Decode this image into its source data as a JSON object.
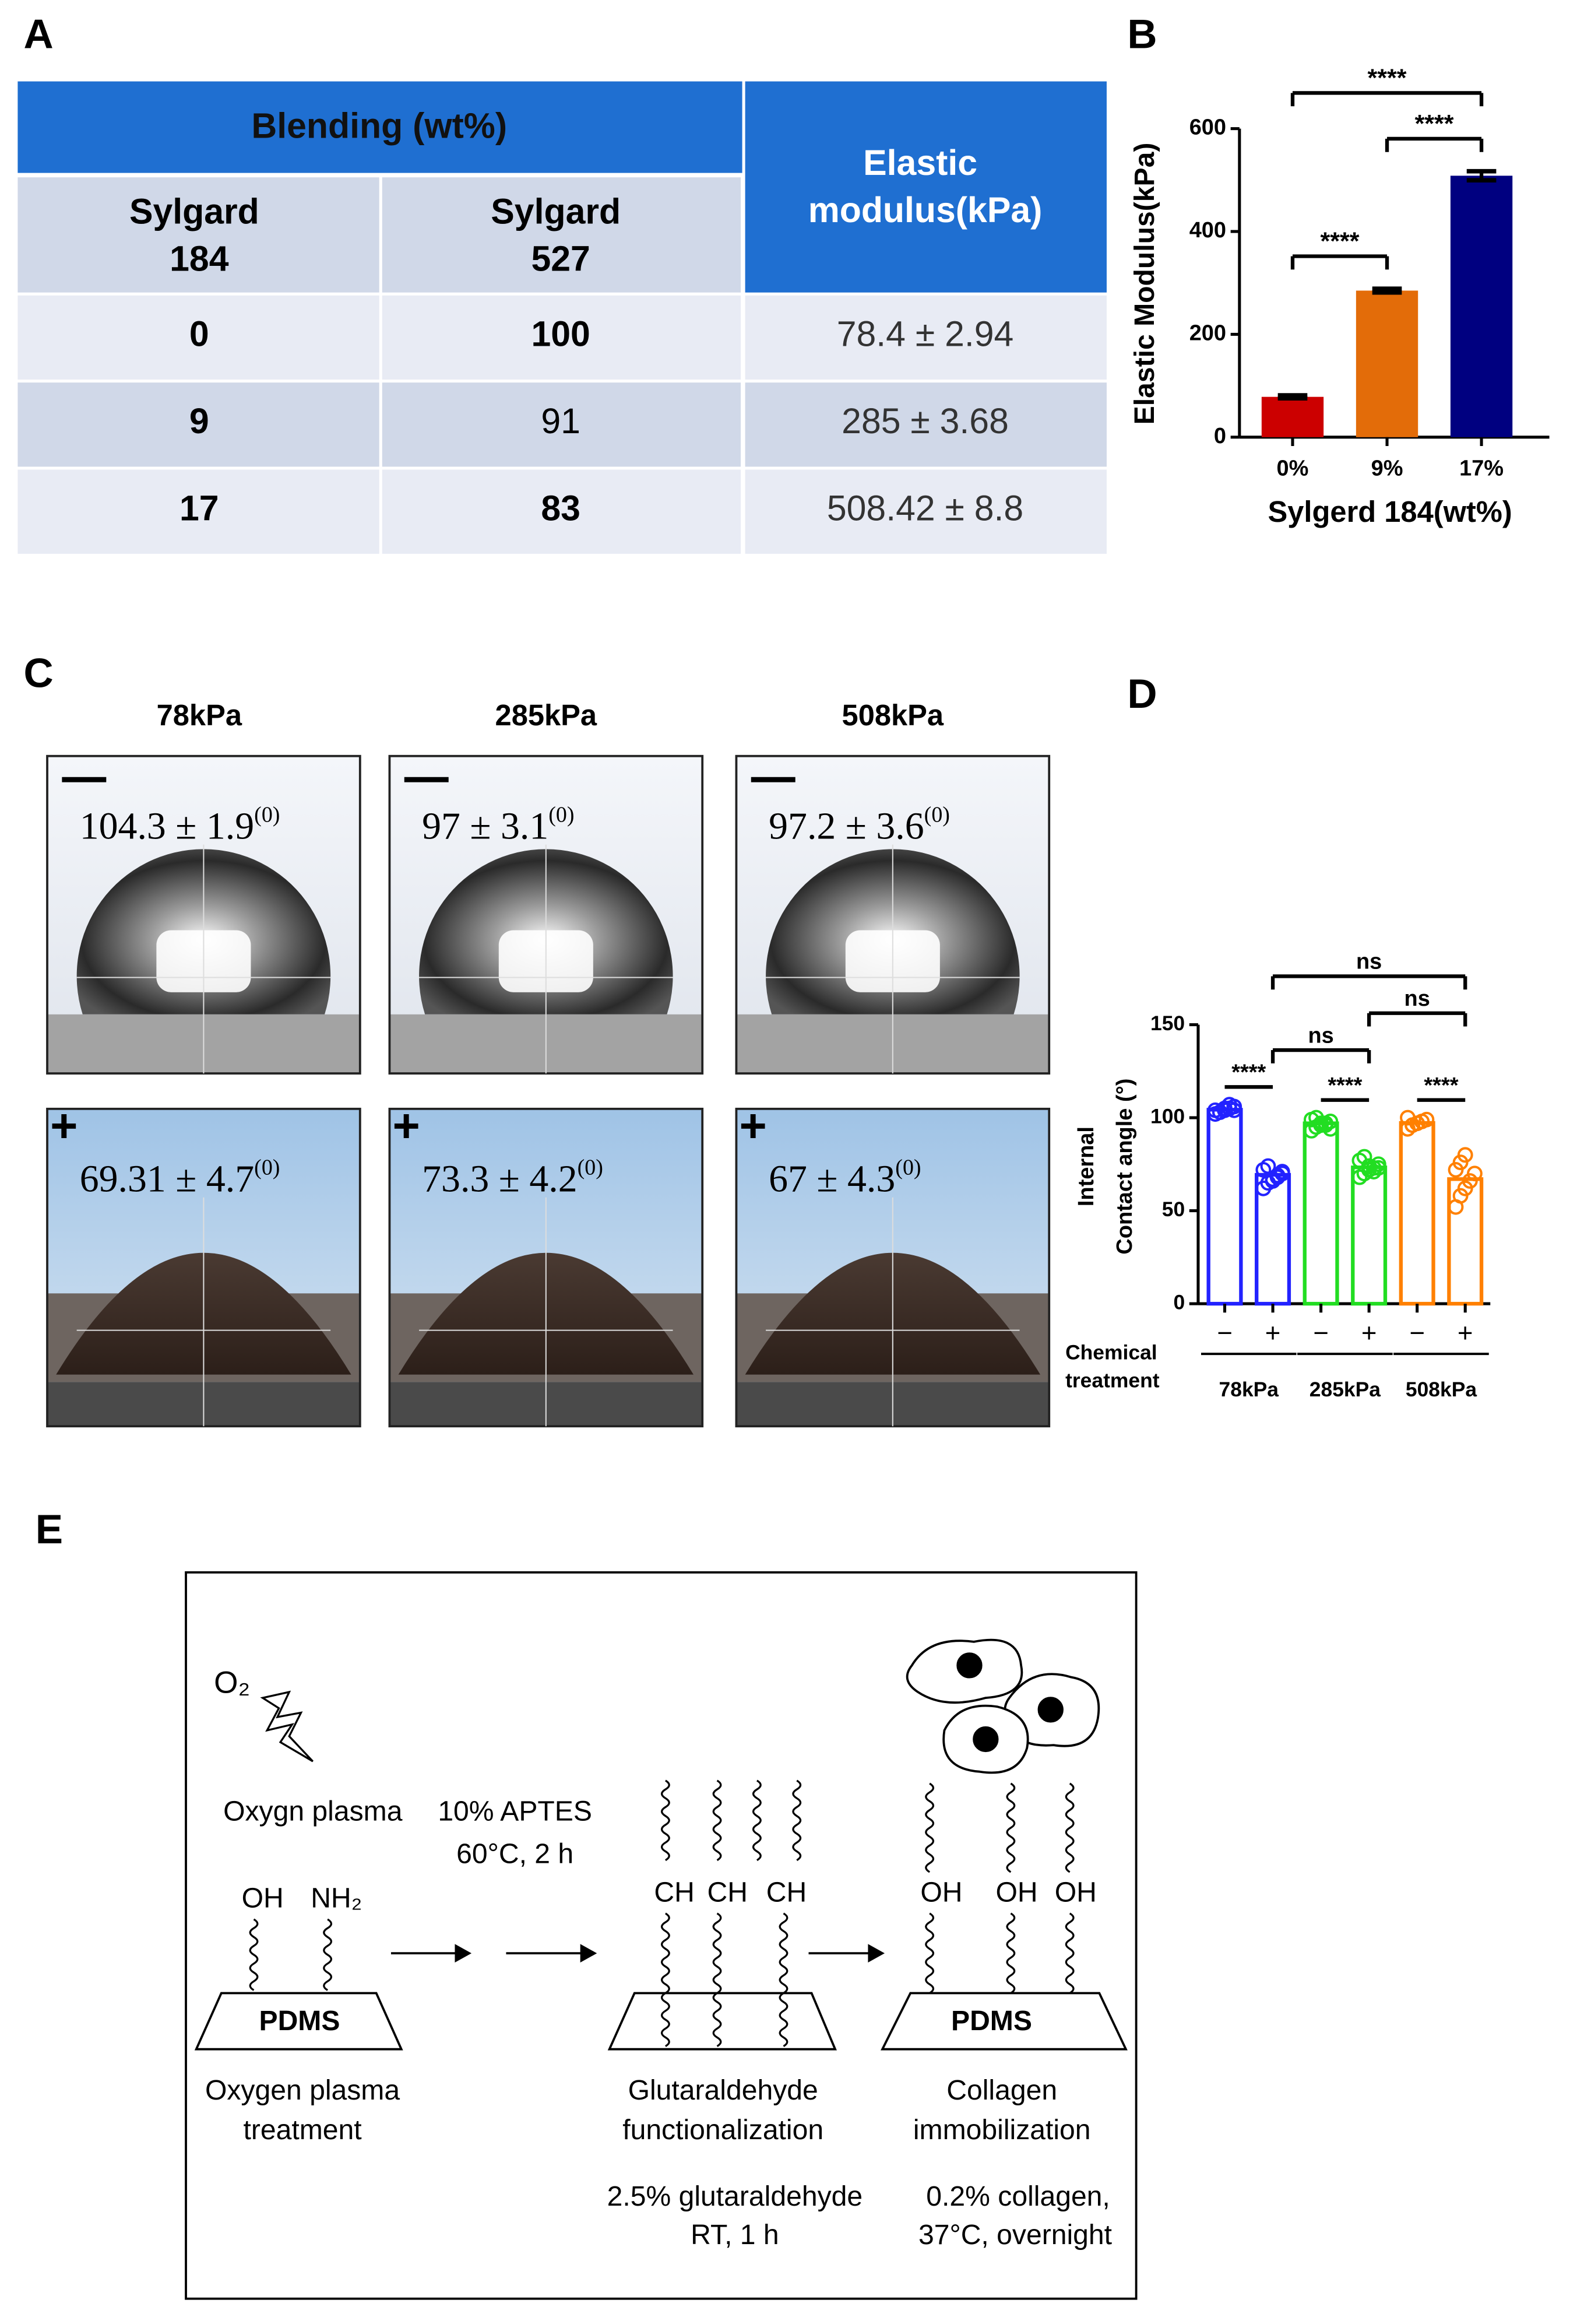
{
  "panels": [
    "A",
    "B",
    "C",
    "D",
    "E"
  ],
  "table": {
    "header": {
      "blending": "Blending (wt%)",
      "modulus": "Elastic modulus(kPa)",
      "columns": [
        "Sylgard 184",
        "Sylgard 527"
      ]
    },
    "rows": [
      [
        "0",
        "100",
        "78.4 ± 2.94"
      ],
      [
        "9",
        "91",
        "285 ± 3.68"
      ],
      [
        "17",
        "83",
        "508.42 ± 8.8"
      ]
    ],
    "bold": [
      [
        true,
        true,
        false
      ],
      [
        true,
        false,
        false
      ],
      [
        true,
        true,
        false
      ]
    ],
    "header_color": "#1f6fd1",
    "row_colors": [
      "#e8ebf4",
      "#d0d8e8"
    ]
  },
  "chart_data": [
    {
      "type": "bar",
      "ylabel": "Elastic Modulus(kPa)",
      "xlabel": "Sylgerd 184(wt%)",
      "categories": [
        "0%",
        "9%",
        "17%"
      ],
      "values": [
        78.4,
        285,
        508.42
      ],
      "errors": [
        2.94,
        3.68,
        8.8
      ],
      "colors": [
        "#cc0000",
        "#e36c09",
        "#000080"
      ],
      "ylim": [
        0,
        600
      ],
      "yticks": [
        0,
        200,
        400,
        600
      ],
      "significance": [
        {
          "pair": [
            0,
            1
          ],
          "label": "****"
        },
        {
          "pair": [
            1,
            2
          ],
          "label": "****"
        },
        {
          "pair": [
            0,
            2
          ],
          "label": "****"
        }
      ]
    },
    {
      "type": "dotbar",
      "ylabel": [
        "Internal",
        "Contact angle (°)"
      ],
      "treatment_label": [
        "Chemical",
        "treatment"
      ],
      "categories": [
        "−",
        "+",
        "−",
        "+",
        "−",
        "+"
      ],
      "groups": [
        "78kPa",
        "285kPa",
        "508kPa"
      ],
      "group_colors": [
        "#2222ff",
        "#22dd22",
        "#ff8000"
      ],
      "values": [
        104.3,
        69.31,
        97,
        73.3,
        97.2,
        67
      ],
      "points": [
        [
          102,
          103,
          104,
          105,
          106,
          104,
          103,
          105,
          107,
          104
        ],
        [
          62,
          65,
          67,
          68,
          70,
          72,
          74,
          66,
          69,
          71
        ],
        [
          93,
          95,
          96,
          97,
          98,
          99,
          100,
          97,
          96,
          94
        ],
        [
          68,
          70,
          72,
          73,
          75,
          77,
          79,
          74,
          71,
          73
        ],
        [
          94,
          96,
          97,
          98,
          99,
          100,
          96,
          97
        ],
        [
          52,
          58,
          62,
          66,
          70,
          72,
          76,
          80
        ]
      ],
      "ylim": [
        0,
        150
      ],
      "yticks": [
        0,
        50,
        100,
        150
      ],
      "significance": [
        {
          "pair": [
            0,
            1
          ],
          "label": "****"
        },
        {
          "pair": [
            2,
            3
          ],
          "label": "****"
        },
        {
          "pair": [
            4,
            5
          ],
          "label": "****"
        },
        {
          "pair": [
            1,
            3
          ],
          "label": "ns"
        },
        {
          "pair": [
            3,
            5
          ],
          "label": "ns"
        },
        {
          "pair": [
            1,
            5
          ],
          "label": "ns"
        }
      ]
    }
  ],
  "photos": {
    "columns": [
      "78kPa",
      "285kPa",
      "508kPa"
    ],
    "unit": "(0)",
    "rows": [
      {
        "angles": [
          "104.3 ± 1.9",
          "97 ± 3.1",
          "97.2 ± 3.6"
        ]
      },
      {
        "mark": "+",
        "angles": [
          "69.31 ± 4.7",
          "73.3 ± 4.2",
          "67 ± 4.3"
        ]
      }
    ]
  },
  "scheme": {
    "o2": "O₂",
    "step1": {
      "label": "Oxygn plasma",
      "groups": [
        "OH",
        "NH₂"
      ],
      "substrate": "PDMS",
      "caption": [
        "Oxygen plasma",
        "treatment"
      ]
    },
    "step2": {
      "conditions": [
        "10% APTES",
        "60°C, 2 h"
      ],
      "groups": [
        "CH",
        "CH",
        "CH"
      ],
      "caption": [
        "Glutaraldehyde",
        "functionalization"
      ],
      "conditions_after": [
        "2.5% glutaraldehyde",
        "RT, 1 h"
      ]
    },
    "step3": {
      "groups": [
        "OH",
        "OH",
        "OH"
      ],
      "substrate": "PDMS",
      "caption": [
        "Collagen",
        "immobilization"
      ],
      "conditions": [
        "0.2% collagen,",
        "37°C, overnight"
      ]
    }
  }
}
